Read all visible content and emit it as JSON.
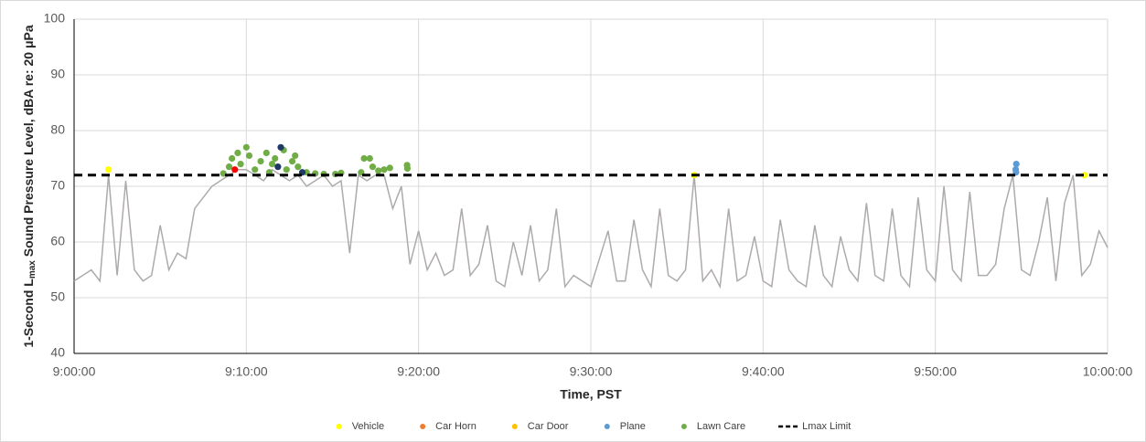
{
  "chart_data": {
    "type": "line",
    "xlabel": "Time, PST",
    "ylabel": [
      "1-Second L",
      "max",
      " Sound Pressure Level, dBA re: 20 μPa"
    ],
    "xlim": [
      "9:00:00",
      "10:00:00"
    ],
    "xticks": [
      "9:00:00",
      "9:10:00",
      "9:20:00",
      "9:30:00",
      "9:40:00",
      "9:50:00",
      "10:00:00"
    ],
    "ylim": [
      40,
      100
    ],
    "yticks": [
      40,
      50,
      60,
      70,
      80,
      90,
      100
    ],
    "grid": true,
    "legend": "bottom",
    "series": [
      {
        "type": "line",
        "color": "#aeaaaa",
        "x": [
          "9:00:00",
          "9:00:30",
          "9:01:00",
          "9:01:30",
          "9:02:00",
          "9:02:30",
          "9:03:00",
          "9:03:30",
          "9:04:00",
          "9:04:30",
          "9:05:00",
          "9:05:30",
          "9:06:00",
          "9:06:30",
          "9:07:00",
          "9:07:30",
          "9:08:00",
          "9:08:30",
          "9:09:00",
          "9:09:30",
          "9:10:00",
          "9:10:30",
          "9:11:00",
          "9:11:30",
          "9:12:00",
          "9:12:30",
          "9:13:00",
          "9:13:30",
          "9:14:00",
          "9:14:30",
          "9:15:00",
          "9:15:30",
          "9:16:00",
          "9:16:30",
          "9:17:00",
          "9:17:30",
          "9:18:00",
          "9:18:30",
          "9:19:00",
          "9:19:30",
          "9:20:00",
          "9:20:30",
          "9:21:00",
          "9:21:30",
          "9:22:00",
          "9:22:30",
          "9:23:00",
          "9:23:30",
          "9:24:00",
          "9:24:30",
          "9:25:00",
          "9:25:30",
          "9:26:00",
          "9:26:30",
          "9:27:00",
          "9:27:30",
          "9:28:00",
          "9:28:30",
          "9:29:00",
          "9:29:30",
          "9:30:00",
          "9:30:30",
          "9:31:00",
          "9:31:30",
          "9:32:00",
          "9:32:30",
          "9:33:00",
          "9:33:30",
          "9:34:00",
          "9:34:30",
          "9:35:00",
          "9:35:30",
          "9:36:00",
          "9:36:30",
          "9:37:00",
          "9:37:30",
          "9:38:00",
          "9:38:30",
          "9:39:00",
          "9:39:30",
          "9:40:00",
          "9:40:30",
          "9:41:00",
          "9:41:30",
          "9:42:00",
          "9:42:30",
          "9:43:00",
          "9:43:30",
          "9:44:00",
          "9:44:30",
          "9:45:00",
          "9:45:30",
          "9:46:00",
          "9:46:30",
          "9:47:00",
          "9:47:30",
          "9:48:00",
          "9:48:30",
          "9:49:00",
          "9:49:30",
          "9:50:00",
          "9:50:30",
          "9:51:00",
          "9:51:30",
          "9:52:00",
          "9:52:30",
          "9:53:00",
          "9:53:30",
          "9:54:00",
          "9:54:30",
          "9:55:00",
          "9:55:30",
          "9:56:00",
          "9:56:30",
          "9:57:00",
          "9:57:30",
          "9:58:00",
          "9:58:30",
          "9:59:00",
          "9:59:30",
          "10:00:00"
        ],
        "values": [
          53,
          54,
          55,
          53,
          72,
          54,
          71,
          55,
          53,
          54,
          63,
          55,
          58,
          57,
          66,
          68,
          70,
          71,
          72,
          73,
          73,
          72,
          71,
          73,
          72,
          71,
          72,
          70,
          71,
          72,
          70,
          71,
          58,
          72,
          71,
          72,
          72,
          66,
          70,
          56,
          62,
          55,
          58,
          54,
          55,
          66,
          54,
          56,
          63,
          53,
          52,
          60,
          54,
          63,
          53,
          55,
          66,
          52,
          54,
          53,
          52,
          57,
          62,
          53,
          53,
          64,
          55,
          52,
          66,
          54,
          53,
          55,
          72,
          53,
          55,
          52,
          66,
          53,
          54,
          61,
          53,
          52,
          64,
          55,
          53,
          52,
          63,
          54,
          52,
          61,
          55,
          53,
          67,
          54,
          53,
          66,
          54,
          52,
          68,
          55,
          53,
          70,
          55,
          53,
          69,
          54,
          54,
          56,
          66,
          72,
          55,
          54,
          60,
          68,
          53,
          67,
          72,
          54,
          56,
          62,
          59
        ]
      },
      {
        "type": "scatter",
        "name": "Vehicle",
        "color": "#ffff00",
        "x": [
          "9:02:00",
          "9:36:00",
          "9:58:40"
        ],
        "values": [
          73,
          72,
          72
        ]
      },
      {
        "type": "scatter",
        "name": "Car Horn",
        "color": "#ed7d31",
        "x": [],
        "values": []
      },
      {
        "type": "scatter",
        "name": "Car Door",
        "color": "#ffc000",
        "x": [],
        "values": []
      },
      {
        "type": "scatter",
        "name": "Plane",
        "color": "#5b9bd5",
        "x": [
          "9:54:40",
          "9:54:42",
          "9:54:41"
        ],
        "values": [
          73,
          74,
          72.5
        ]
      },
      {
        "type": "scatter",
        "name": "Lawn Care",
        "color": "#70ad47",
        "x": [
          "9:08:40",
          "9:09:00",
          "9:09:10",
          "9:09:30",
          "9:09:40",
          "9:10:00",
          "9:10:10",
          "9:10:30",
          "9:10:50",
          "9:11:10",
          "9:11:20",
          "9:11:30",
          "9:11:40",
          "9:12:10",
          "9:12:20",
          "9:12:40",
          "9:12:50",
          "9:13:00",
          "9:13:30",
          "9:14:00",
          "9:14:30",
          "9:15:10",
          "9:15:30",
          "9:16:40",
          "9:16:50",
          "9:17:10",
          "9:17:20",
          "9:17:40",
          "9:18:00",
          "9:18:20",
          "9:19:20",
          "9:19:21"
        ],
        "values": [
          72.3,
          73.5,
          75,
          76,
          74,
          77,
          75.5,
          73,
          74.5,
          76,
          72.5,
          74,
          75,
          76.5,
          73,
          74.5,
          75.5,
          73.5,
          72.5,
          72.3,
          72.2,
          72.2,
          72.4,
          72.5,
          75,
          75,
          73.5,
          72.8,
          73,
          73.3,
          73.8,
          73.2
        ]
      },
      {
        "type": "scatter",
        "color": "#ff0000",
        "x": [
          "9:09:20"
        ],
        "values": [
          73
        ]
      },
      {
        "type": "scatter",
        "color": "#1f3864",
        "x": [
          "9:11:50",
          "9:12:00",
          "9:13:15"
        ],
        "values": [
          73.5,
          77,
          72.5
        ]
      },
      {
        "type": "line",
        "name": "Lmax Limit",
        "color": "#000000",
        "dashed": true,
        "x": [
          "9:00:00",
          "10:00:00"
        ],
        "values": [
          72,
          72
        ]
      }
    ]
  }
}
